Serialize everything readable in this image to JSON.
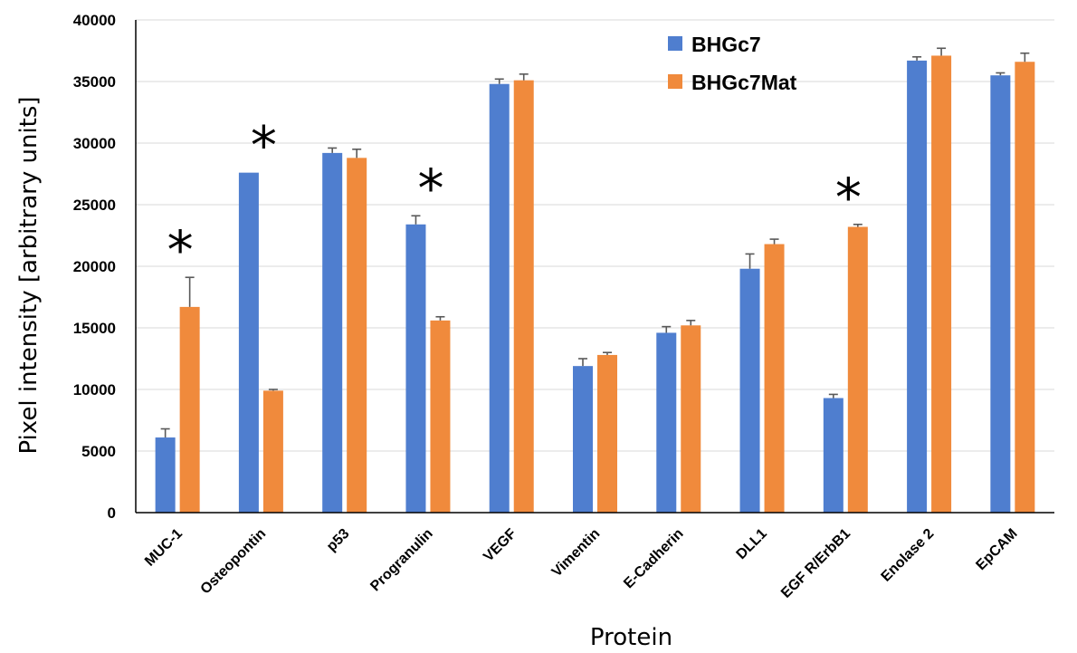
{
  "chart_data": {
    "type": "bar",
    "title": "",
    "xlabel": "Protein",
    "ylabel": "Pixel intensity [arbitrary units]",
    "ylim": [
      0,
      40000
    ],
    "yticks": [
      0,
      5000,
      10000,
      15000,
      20000,
      25000,
      30000,
      35000,
      40000
    ],
    "grid": true,
    "legend_position": "top-right",
    "categories": [
      "MUC-1",
      "Osteopontin",
      "p53",
      "Progranulin",
      "VEGF",
      "Vimentin",
      "E-Cadherin",
      "DLL1",
      "EGF R/ErbB1",
      "Enolase 2",
      "EpCAM"
    ],
    "series": [
      {
        "name": "BHGc7",
        "color": "#4F7ECF",
        "values": [
          6100,
          27600,
          29200,
          23400,
          34800,
          11900,
          14600,
          19800,
          9300,
          36700,
          35500
        ],
        "errors": [
          700,
          0,
          400,
          700,
          400,
          600,
          500,
          1200,
          300,
          300,
          200
        ]
      },
      {
        "name": "BHGc7Mat",
        "color": "#F08A3C",
        "values": [
          16700,
          9900,
          28800,
          15600,
          35100,
          12800,
          15200,
          21800,
          23200,
          37100,
          36600
        ],
        "errors": [
          2400,
          100,
          700,
          300,
          500,
          200,
          400,
          400,
          200,
          600,
          700
        ]
      }
    ],
    "annotations": [
      {
        "category": "MUC-1",
        "text": "*"
      },
      {
        "category": "Osteopontin",
        "text": "*"
      },
      {
        "category": "Progranulin",
        "text": "*"
      },
      {
        "category": "EGF R/ErbB1",
        "text": "*"
      }
    ]
  }
}
